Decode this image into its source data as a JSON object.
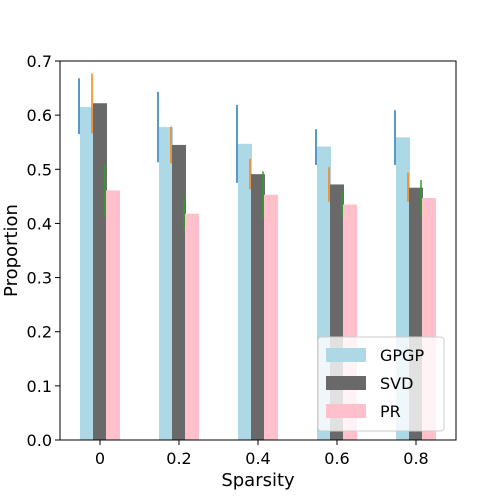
{
  "chart_data": {
    "type": "bar",
    "title": "",
    "xlabel": "Sparsity",
    "ylabel": "Proportion",
    "categories": [
      "0",
      "0.2",
      "0.4",
      "0.6",
      "0.8"
    ],
    "ylim": [
      0.0,
      0.7
    ],
    "yticks": [
      "0.0",
      "0.1",
      "0.2",
      "0.3",
      "0.4",
      "0.5",
      "0.6",
      "0.7"
    ],
    "grid": false,
    "legend_position": "bottom-right",
    "series": [
      {
        "name": "GPGP",
        "color": "#add8e6",
        "error_color": "#1f77b4",
        "values": [
          0.615,
          0.578,
          0.547,
          0.542,
          0.559
        ],
        "err_low": [
          0.565,
          0.513,
          0.475,
          0.508,
          0.508
        ],
        "err_high": [
          0.668,
          0.643,
          0.619,
          0.574,
          0.609
        ]
      },
      {
        "name": "SVD",
        "color": "#696969",
        "error_color": "#ff7f0e",
        "values": [
          0.622,
          0.545,
          0.491,
          0.472,
          0.466
        ],
        "err_low": [
          0.566,
          0.511,
          0.463,
          0.44,
          0.44
        ],
        "err_high": [
          0.677,
          0.579,
          0.519,
          0.504,
          0.494
        ]
      },
      {
        "name": "PR",
        "color": "#ffc0cb",
        "error_color": "#2ca02c",
        "values": [
          0.461,
          0.418,
          0.453,
          0.435,
          0.447
        ],
        "err_low": [
          0.412,
          0.389,
          0.41,
          0.412,
          0.415
        ],
        "err_high": [
          0.51,
          0.447,
          0.496,
          0.46,
          0.48
        ]
      }
    ]
  }
}
